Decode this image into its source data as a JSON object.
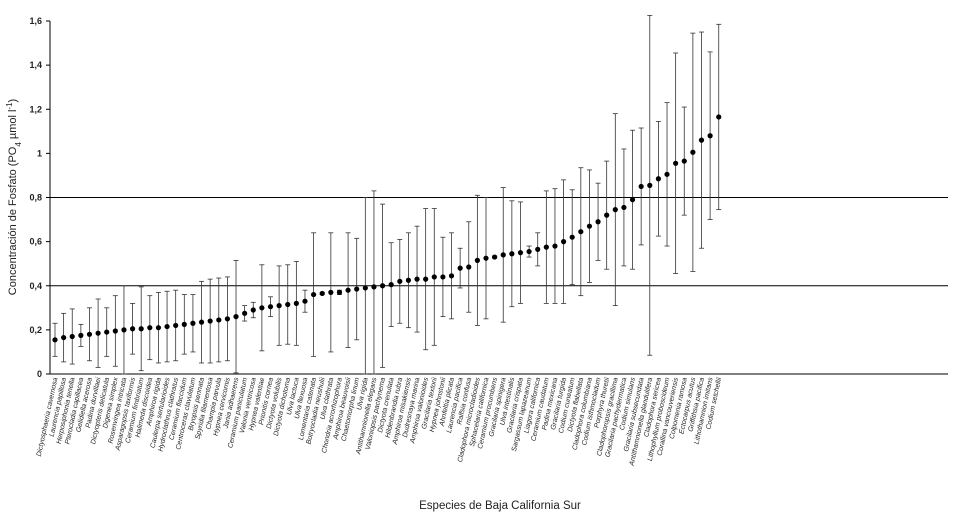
{
  "chart_data": {
    "type": "scatter",
    "title": "",
    "xlabel": "Especies de Baja California Sur",
    "ylabel": "Concentración de Fosfato (PO4 µmol l-1)",
    "ylabel_parts": {
      "pre": "Concentración de Fosfato (PO",
      "sub": "4",
      "mid": " µmol l",
      "sup": "-1",
      "post": ")"
    },
    "ylim": [
      0,
      1.6
    ],
    "yticks": [
      {
        "value": 0,
        "label": "0"
      },
      {
        "value": 0.2,
        "label": "0,2"
      },
      {
        "value": 0.4,
        "label": "0,4"
      },
      {
        "value": 0.6,
        "label": "0,6"
      },
      {
        "value": 0.8,
        "label": "0,8"
      },
      {
        "value": 1.0,
        "label": "1"
      },
      {
        "value": 1.2,
        "label": "1,2"
      },
      {
        "value": 1.4,
        "label": "1,4"
      },
      {
        "value": 1.6,
        "label": "1,6"
      }
    ],
    "reference_lines": [
      0.4,
      0.8
    ],
    "categories": [
      "Dictyosphaeria cavernosa",
      "Laurencia papillosa",
      "Herposiphonia tenella",
      "Pterocladia capillacea",
      "Gelidiella acerosa",
      "Padina durvillaei",
      "Dictyopteris delicatula",
      "Digenea simplex",
      "Rosenvingea intricata",
      "Asparagopsis taxiformis",
      "Ceramium fimbriatum",
      "Halimeda discoidea",
      "Amphiroa rigida",
      "Caulerpa sertularioides",
      "Hydroclathrus clathratus",
      "Ceramium flaccidum",
      "Centroceras clavulatum",
      "Bryopsis pennata",
      "Spyridia filamentosa",
      "Champia parvula",
      "Hypnea cervicornis",
      "Jania adhaerens",
      "Ceramium paniculatum",
      "Valonia ventricosa",
      "Hypnea valentiae",
      "Prionitis cornea",
      "Dictyota volubilis",
      "Dictyota dichotoma",
      "Ulva lactuca",
      "Ulva flexuosa",
      "Lomentaria catenata",
      "Botryocladia neushulii",
      "Ulva clathrata",
      "Chondria acrorhizophora",
      "Amphiroa beauvoisii",
      "Chaetomorpha linum",
      "Ulva rigida",
      "Antithamnionella elegans",
      "Valoniopsis pachynema",
      "Dictyota crenulata",
      "Hildenbrandia rubra",
      "Amphiroa misakiensis",
      "Dudresnaya marina",
      "Amphiroa valonioides",
      "Gracilaria textorii",
      "Hypnea johnstonii",
      "Ahnfeltia plicata",
      "Laurencia pacifica",
      "Ralfsia confusa",
      "Cladophora microcladioides",
      "Sphacelaria californica",
      "Ceramium procumbens",
      "Gracilaria spinigera",
      "Ulva intestinalis",
      "Gracilaria crispata",
      "Sargassum lapazeanum",
      "Liagora californica",
      "Ceramium caudatum",
      "Padina mexicana",
      "Gracilaria turgida",
      "Codium cuneatum",
      "Dictyota flabellata",
      "Cladophora columbiana",
      "Codium isthmocladum",
      "Porphyra thuretii",
      "Cladophoropsis gracillima",
      "Gracilaria pachydermatica",
      "Codium simulans",
      "Gracilaria subsecundata",
      "Antithamnionella glandulifera",
      "Cladophora sericea",
      "Lithophyllum proboscideum",
      "Corallina vancouveriensis",
      "Colpomenia ramosa",
      "Ectocarpus acutus",
      "Griffithsia pacifica",
      "Lithothamnion imitans",
      "Codium setchellii"
    ],
    "series": [
      {
        "name": "Concentración de fosfato",
        "values": [
          0.155,
          0.165,
          0.17,
          0.175,
          0.18,
          0.185,
          0.19,
          0.195,
          0.2,
          0.205,
          0.205,
          0.21,
          0.21,
          0.215,
          0.22,
          0.225,
          0.23,
          0.235,
          0.24,
          0.245,
          0.25,
          0.26,
          0.275,
          0.29,
          0.3,
          0.305,
          0.31,
          0.315,
          0.32,
          0.33,
          0.36,
          0.365,
          0.37,
          0.37,
          0.38,
          0.385,
          0.39,
          0.395,
          0.4,
          0.405,
          0.42,
          0.425,
          0.43,
          0.43,
          0.44,
          0.44,
          0.445,
          0.48,
          0.485,
          0.515,
          0.525,
          0.53,
          0.54,
          0.545,
          0.55,
          0.555,
          0.565,
          0.575,
          0.58,
          0.6,
          0.62,
          0.645,
          0.67,
          0.69,
          0.72,
          0.745,
          0.755,
          0.79,
          0.85,
          0.855,
          0.885,
          0.905,
          0.955,
          0.965,
          1.005,
          1.06,
          1.08,
          1.165
        ],
        "error": [
          0.075,
          0.11,
          0.125,
          0.05,
          0.12,
          0.155,
          0.11,
          0.16,
          0.2,
          0.115,
          0.19,
          0.145,
          0.16,
          0.16,
          0.16,
          0.135,
          0.13,
          0.185,
          0.19,
          0.19,
          0.19,
          0.255,
          0.035,
          0.035,
          0.195,
          0.045,
          0.18,
          0.18,
          0.19,
          0.05,
          0.28,
          0.005,
          0.27,
          0.01,
          0.26,
          0.23,
          0.41,
          0.435,
          0.37,
          0.19,
          0.19,
          0.215,
          0.24,
          0.32,
          0.31,
          0.18,
          0.195,
          0.09,
          0.205,
          0.295,
          0.275,
          0.005,
          0.305,
          0.24,
          0.23,
          0.025,
          0.075,
          0.255,
          0.26,
          0.28,
          0.215,
          0.29,
          0.255,
          0.175,
          0.245,
          0.435,
          0.265,
          0.315,
          0.265,
          0.77,
          0.26,
          0.325,
          0.5,
          0.245,
          0.54,
          0.49,
          0.38,
          0.42
        ]
      }
    ],
    "grid": false,
    "legend": "none"
  }
}
